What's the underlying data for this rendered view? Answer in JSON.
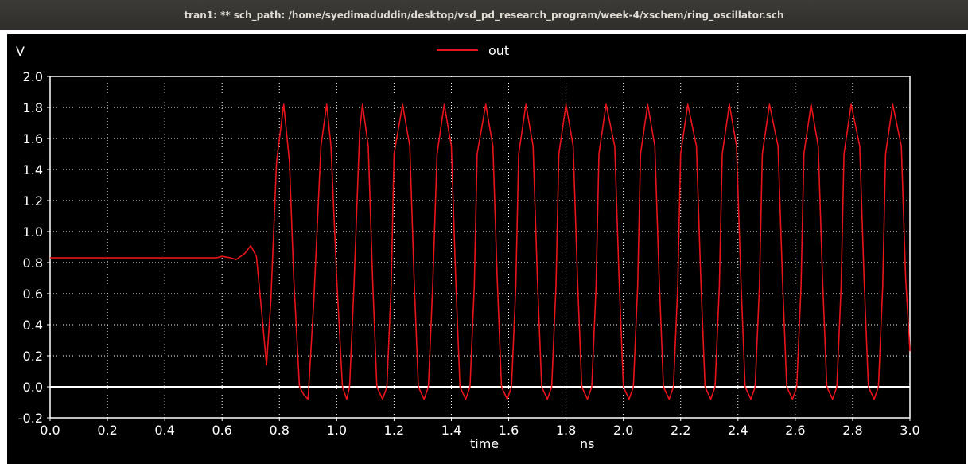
{
  "window": {
    "title": "tran1: ** sch_path: /home/syedimaduddin/desktop/vsd_pd_research_program/week-4/xschem/ring_oscillator.sch"
  },
  "colors": {
    "background": "#000000",
    "grid": "#ffffff",
    "trace": "#e8141b",
    "text": "#ffffff"
  },
  "chart_data": {
    "type": "line",
    "title": "",
    "xlabel": "time",
    "xunit": "ns",
    "ylabel": "V",
    "xlim": [
      0.0,
      3.0
    ],
    "ylim": [
      -0.2,
      2.0
    ],
    "xticks": [
      "0.0",
      "0.2",
      "0.4",
      "0.6",
      "0.8",
      "1.0",
      "1.2",
      "1.4",
      "1.6",
      "1.8",
      "2.0",
      "2.2",
      "2.4",
      "2.6",
      "2.8",
      "3.0"
    ],
    "yticks": [
      "2.0",
      "1.8",
      "1.6",
      "1.4",
      "1.2",
      "1.0",
      "0.8",
      "0.6",
      "0.4",
      "0.2",
      "0.0",
      "-0.2"
    ],
    "grid": true,
    "legend": "top-center",
    "series": [
      {
        "name": "out",
        "x": [
          0.0,
          0.5,
          0.58,
          0.6,
          0.63,
          0.65,
          0.68,
          0.7,
          0.72,
          0.74,
          0.755,
          0.77,
          0.79,
          0.815,
          0.835,
          0.85,
          0.87,
          0.885,
          0.9,
          0.92,
          0.945,
          0.965,
          0.98,
          1.0,
          1.02,
          1.035,
          1.045,
          1.06,
          1.08,
          1.09,
          1.11,
          1.125,
          1.14,
          1.16,
          1.175,
          1.19,
          1.2,
          1.23,
          1.255,
          1.27,
          1.285,
          1.305,
          1.32,
          1.335,
          1.35,
          1.375,
          1.4,
          1.415,
          1.43,
          1.45,
          1.465,
          1.48,
          1.49,
          1.52,
          1.545,
          1.56,
          1.575,
          1.595,
          1.61,
          1.625,
          1.635,
          1.66,
          1.685,
          1.7,
          1.715,
          1.735,
          1.75,
          1.765,
          1.775,
          1.8,
          1.825,
          1.84,
          1.855,
          1.875,
          1.89,
          1.905,
          1.915,
          1.94,
          1.97,
          1.985,
          2.0,
          2.02,
          2.035,
          2.05,
          2.06,
          2.085,
          2.11,
          2.125,
          2.14,
          2.16,
          2.175,
          2.19,
          2.2,
          2.225,
          2.255,
          2.27,
          2.285,
          2.305,
          2.32,
          2.335,
          2.345,
          2.37,
          2.395,
          2.41,
          2.425,
          2.445,
          2.46,
          2.475,
          2.485,
          2.51,
          2.54,
          2.555,
          2.57,
          2.59,
          2.605,
          2.62,
          2.63,
          2.655,
          2.68,
          2.695,
          2.71,
          2.73,
          2.745,
          2.76,
          2.77,
          2.795,
          2.825,
          2.84,
          2.855,
          2.875,
          2.89,
          2.905,
          2.915,
          2.94,
          2.97,
          2.985,
          3.0
        ],
        "y": [
          0.83,
          0.83,
          0.83,
          0.84,
          0.83,
          0.82,
          0.86,
          0.91,
          0.84,
          0.45,
          0.14,
          0.55,
          1.45,
          1.82,
          1.45,
          0.7,
          0.0,
          -0.05,
          -0.08,
          0.55,
          1.55,
          1.82,
          1.55,
          0.7,
          0.0,
          -0.08,
          0.0,
          0.65,
          1.65,
          1.82,
          1.55,
          0.7,
          0.0,
          -0.08,
          0.0,
          0.65,
          1.5,
          1.82,
          1.55,
          0.7,
          0.0,
          -0.08,
          0.0,
          0.65,
          1.5,
          1.82,
          1.55,
          0.7,
          0.0,
          -0.08,
          0.0,
          0.65,
          1.5,
          1.82,
          1.55,
          0.7,
          0.0,
          -0.08,
          0.0,
          0.65,
          1.5,
          1.82,
          1.55,
          0.7,
          0.0,
          -0.08,
          0.0,
          0.65,
          1.5,
          1.82,
          1.55,
          0.7,
          0.0,
          -0.08,
          0.0,
          0.65,
          1.5,
          1.82,
          1.55,
          0.7,
          0.0,
          -0.08,
          0.0,
          0.65,
          1.5,
          1.82,
          1.55,
          0.7,
          0.0,
          -0.08,
          0.0,
          0.65,
          1.5,
          1.82,
          1.55,
          0.7,
          0.0,
          -0.08,
          0.0,
          0.65,
          1.5,
          1.82,
          1.55,
          0.7,
          0.0,
          -0.08,
          0.0,
          0.65,
          1.5,
          1.82,
          1.55,
          0.7,
          0.0,
          -0.08,
          0.0,
          0.65,
          1.5,
          1.82,
          1.55,
          0.7,
          0.0,
          -0.08,
          0.0,
          0.65,
          1.5,
          1.82,
          1.55,
          0.7,
          0.0,
          -0.08,
          0.0,
          0.65,
          1.5,
          1.82,
          1.55,
          0.7,
          0.23
        ]
      }
    ]
  }
}
